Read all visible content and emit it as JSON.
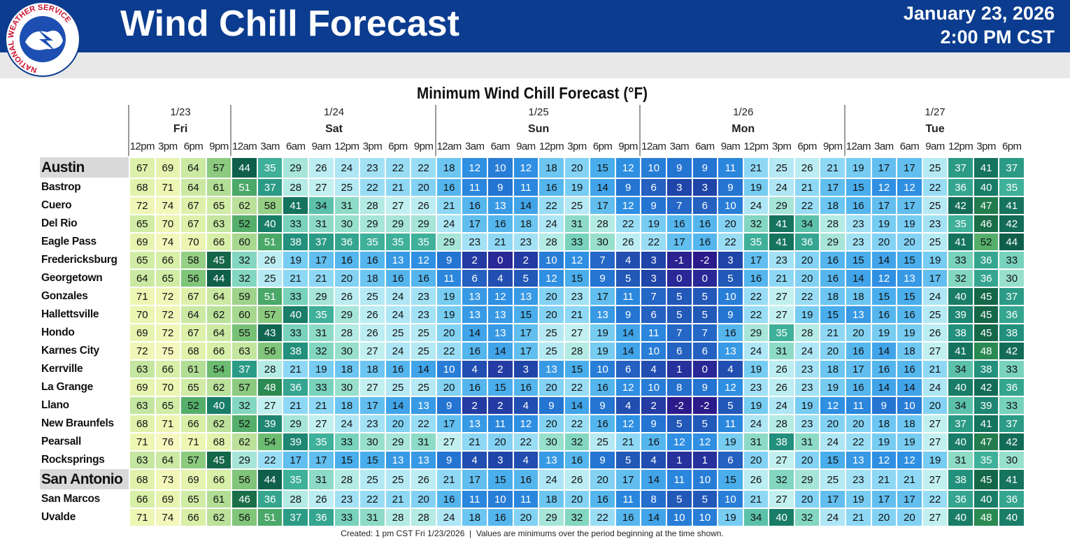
{
  "header": {
    "logo_text": "NATIONAL WEATHER SERVICE",
    "title": "Wind Chill Forecast",
    "date": "January 23, 2026",
    "time": "2:00 PM CST"
  },
  "table": {
    "title": "Minimum Wind Chill Forecast (°F)",
    "days": [
      {
        "date": "1/23",
        "day": "Fri",
        "hours": [
          "12pm",
          "3pm",
          "6pm",
          "9pm"
        ]
      },
      {
        "date": "1/24",
        "day": "Sat",
        "hours": [
          "12am",
          "3am",
          "6am",
          "9am",
          "12pm",
          "3pm",
          "6pm",
          "9pm"
        ]
      },
      {
        "date": "1/25",
        "day": "Sun",
        "hours": [
          "12am",
          "3am",
          "6am",
          "9am",
          "12pm",
          "3pm",
          "6pm",
          "9pm"
        ]
      },
      {
        "date": "1/26",
        "day": "Mon",
        "hours": [
          "12am",
          "3am",
          "6am",
          "9am",
          "12pm",
          "3pm",
          "6pm",
          "9pm"
        ]
      },
      {
        "date": "1/27",
        "day": "Tue",
        "hours": [
          "12am",
          "3am",
          "6am",
          "9am",
          "12pm",
          "3pm",
          "6pm"
        ]
      }
    ],
    "rows": [
      {
        "city": "Austin",
        "values": [
          67,
          69,
          64,
          57,
          44,
          35,
          29,
          26,
          24,
          23,
          22,
          22,
          18,
          12,
          10,
          12,
          18,
          20,
          15,
          12,
          10,
          9,
          9,
          11,
          21,
          25,
          26,
          21,
          19,
          17,
          17,
          25,
          37,
          41,
          37
        ]
      },
      {
        "city": "Bastrop",
        "values": [
          68,
          71,
          64,
          61,
          51,
          37,
          28,
          27,
          25,
          22,
          21,
          20,
          16,
          11,
          9,
          11,
          16,
          19,
          14,
          9,
          6,
          3,
          3,
          9,
          19,
          24,
          21,
          17,
          15,
          12,
          12,
          22,
          36,
          40,
          35
        ]
      },
      {
        "city": "Cuero",
        "values": [
          72,
          74,
          67,
          65,
          62,
          58,
          41,
          34,
          31,
          28,
          27,
          26,
          21,
          16,
          13,
          14,
          22,
          25,
          17,
          12,
          9,
          7,
          6,
          10,
          24,
          29,
          22,
          18,
          16,
          17,
          17,
          25,
          42,
          47,
          41
        ]
      },
      {
        "city": "Del Rio",
        "values": [
          65,
          70,
          67,
          63,
          52,
          40,
          33,
          31,
          30,
          29,
          29,
          29,
          24,
          17,
          16,
          18,
          24,
          31,
          28,
          22,
          19,
          16,
          16,
          20,
          32,
          41,
          34,
          28,
          23,
          19,
          19,
          23,
          35,
          46,
          42
        ]
      },
      {
        "city": "Eagle Pass",
        "values": [
          69,
          74,
          70,
          66,
          60,
          51,
          38,
          37,
          36,
          35,
          35,
          35,
          29,
          23,
          21,
          23,
          28,
          33,
          30,
          26,
          22,
          17,
          16,
          22,
          35,
          41,
          36,
          29,
          23,
          20,
          20,
          25,
          41,
          52,
          44
        ]
      },
      {
        "city": "Fredericksburg",
        "values": [
          65,
          66,
          58,
          45,
          32,
          26,
          19,
          17,
          16,
          16,
          13,
          12,
          9,
          2,
          0,
          2,
          10,
          12,
          7,
          4,
          3,
          -1,
          -2,
          3,
          17,
          23,
          20,
          16,
          15,
          14,
          15,
          19,
          33,
          36,
          33
        ]
      },
      {
        "city": "Georgetown",
        "values": [
          64,
          65,
          56,
          44,
          32,
          25,
          21,
          21,
          20,
          18,
          16,
          16,
          11,
          6,
          4,
          5,
          12,
          15,
          9,
          5,
          3,
          0,
          0,
          5,
          16,
          21,
          20,
          16,
          14,
          12,
          13,
          17,
          32,
          36,
          30
        ]
      },
      {
        "city": "Gonzales",
        "values": [
          71,
          72,
          67,
          64,
          59,
          51,
          33,
          29,
          26,
          25,
          24,
          23,
          19,
          13,
          12,
          13,
          20,
          23,
          17,
          11,
          7,
          5,
          5,
          10,
          22,
          27,
          22,
          18,
          18,
          15,
          15,
          24,
          40,
          45,
          37
        ]
      },
      {
        "city": "Hallettsville",
        "values": [
          70,
          72,
          64,
          62,
          60,
          57,
          40,
          35,
          29,
          26,
          24,
          23,
          19,
          13,
          13,
          15,
          20,
          21,
          13,
          9,
          6,
          5,
          5,
          9,
          22,
          27,
          19,
          15,
          13,
          16,
          16,
          25,
          39,
          45,
          36
        ]
      },
      {
        "city": "Hondo",
        "values": [
          69,
          72,
          67,
          64,
          55,
          43,
          33,
          31,
          28,
          26,
          25,
          25,
          20,
          14,
          13,
          17,
          25,
          27,
          19,
          14,
          11,
          7,
          7,
          16,
          29,
          35,
          28,
          21,
          20,
          19,
          19,
          26,
          38,
          45,
          38
        ]
      },
      {
        "city": "Karnes City",
        "values": [
          72,
          75,
          68,
          66,
          63,
          56,
          38,
          32,
          30,
          27,
          24,
          25,
          22,
          16,
          14,
          17,
          25,
          28,
          19,
          14,
          10,
          6,
          6,
          13,
          24,
          31,
          24,
          20,
          16,
          14,
          18,
          27,
          41,
          48,
          42
        ]
      },
      {
        "city": "Kerrville",
        "values": [
          63,
          66,
          61,
          54,
          37,
          28,
          21,
          19,
          18,
          18,
          16,
          14,
          10,
          4,
          2,
          3,
          13,
          15,
          10,
          6,
          4,
          1,
          0,
          4,
          19,
          26,
          23,
          18,
          17,
          16,
          16,
          21,
          34,
          38,
          33
        ]
      },
      {
        "city": "La Grange",
        "values": [
          69,
          70,
          65,
          62,
          57,
          48,
          36,
          33,
          30,
          27,
          25,
          25,
          20,
          16,
          15,
          16,
          20,
          22,
          16,
          12,
          10,
          8,
          9,
          12,
          23,
          26,
          23,
          19,
          16,
          14,
          14,
          24,
          40,
          42,
          36
        ]
      },
      {
        "city": "Llano",
        "values": [
          63,
          65,
          52,
          40,
          32,
          27,
          21,
          21,
          18,
          17,
          14,
          13,
          9,
          2,
          2,
          4,
          9,
          14,
          9,
          4,
          2,
          -2,
          -2,
          5,
          19,
          24,
          19,
          12,
          11,
          9,
          10,
          20,
          34,
          39,
          33
        ]
      },
      {
        "city": "New Braunfels",
        "values": [
          68,
          71,
          66,
          62,
          52,
          39,
          29,
          27,
          24,
          23,
          20,
          22,
          17,
          13,
          11,
          12,
          20,
          22,
          16,
          12,
          9,
          5,
          5,
          11,
          24,
          28,
          23,
          20,
          20,
          18,
          18,
          27,
          37,
          41,
          37
        ]
      },
      {
        "city": "Pearsall",
        "values": [
          71,
          76,
          71,
          68,
          62,
          54,
          39,
          35,
          33,
          30,
          29,
          31,
          27,
          21,
          20,
          22,
          30,
          32,
          25,
          21,
          16,
          12,
          12,
          19,
          31,
          38,
          31,
          24,
          22,
          19,
          19,
          27,
          40,
          47,
          42
        ]
      },
      {
        "city": "Rocksprings",
        "values": [
          63,
          64,
          57,
          45,
          29,
          22,
          17,
          17,
          15,
          15,
          13,
          13,
          9,
          4,
          3,
          4,
          13,
          16,
          9,
          5,
          4,
          1,
          1,
          6,
          20,
          27,
          20,
          15,
          13,
          12,
          12,
          19,
          31,
          35,
          30
        ]
      },
      {
        "city": "San Antonio",
        "values": [
          68,
          73,
          69,
          66,
          56,
          44,
          35,
          31,
          28,
          25,
          25,
          26,
          21,
          17,
          15,
          16,
          24,
          26,
          20,
          17,
          14,
          11,
          10,
          15,
          26,
          32,
          29,
          25,
          23,
          21,
          21,
          27,
          38,
          45,
          41
        ]
      },
      {
        "city": "San Marcos",
        "values": [
          66,
          69,
          65,
          61,
          46,
          36,
          28,
          26,
          23,
          22,
          21,
          20,
          16,
          11,
          10,
          11,
          18,
          20,
          16,
          11,
          8,
          5,
          5,
          10,
          21,
          27,
          20,
          17,
          19,
          17,
          17,
          22,
          36,
          40,
          36
        ]
      },
      {
        "city": "Uvalde",
        "values": [
          71,
          74,
          66,
          62,
          56,
          51,
          37,
          36,
          33,
          31,
          28,
          28,
          24,
          18,
          16,
          20,
          29,
          32,
          22,
          16,
          14,
          10,
          10,
          19,
          34,
          40,
          32,
          24,
          21,
          20,
          20,
          27,
          40,
          48,
          40
        ]
      }
    ]
  },
  "footer": "Created: 1 pm CST Fri 1/23/2026  |  Values are minimums over the period beginning at the time shown."
}
